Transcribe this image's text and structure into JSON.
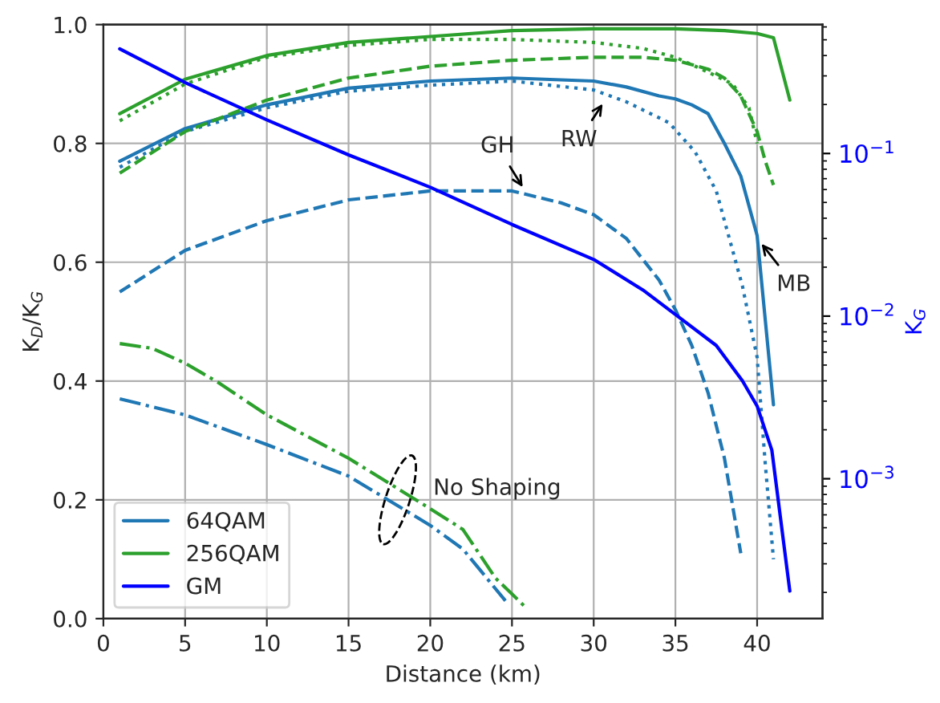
{
  "chart_data": {
    "type": "line",
    "xlabel": "Distance (km)",
    "ylabel": "K$_{D}$/K$_{G}$",
    "y2label": "K$_{G}$",
    "xlim": [
      0,
      44
    ],
    "ylim": [
      0,
      1
    ],
    "xticks": [
      0,
      5,
      10,
      15,
      20,
      25,
      30,
      35,
      40
    ],
    "yticks": [
      {
        "value": 0,
        "label": "0.0"
      },
      {
        "value": 0.2,
        "label": "0.2"
      },
      {
        "value": 0.4,
        "label": "0.4"
      },
      {
        "value": 0.6,
        "label": "0.6"
      },
      {
        "value": 0.8,
        "label": "0.8"
      },
      {
        "value": 1,
        "label": "1.0"
      }
    ],
    "y2lim": [
      0.000138,
      0.62
    ],
    "log": "y2",
    "y2ticks": [
      {
        "value": 0.001,
        "label": "10$^{−3}$"
      },
      {
        "value": 0.01,
        "label": "10$^{−2}$"
      },
      {
        "value": 0.1,
        "label": "10$^{−1}$"
      }
    ],
    "grid": true,
    "legend": "bottom left",
    "series": [
      {
        "name": "64QAM",
        "color": "#1f77b4",
        "line_style": "solid",
        "x": [
          1,
          5,
          10,
          15,
          20,
          25,
          30,
          32,
          34,
          35,
          36,
          37,
          38,
          39,
          40,
          41
        ],
        "values": [
          0.77,
          0.825,
          0.865,
          0.893,
          0.905,
          0.91,
          0.905,
          0.895,
          0.88,
          0.875,
          0.865,
          0.85,
          0.8,
          0.745,
          0.645,
          0.36
        ]
      },
      {
        "color": "#1f77b4",
        "line_style": "dotted",
        "x": [
          1,
          5,
          10,
          15,
          20,
          25,
          30,
          32,
          34.6,
          36.2,
          37.5,
          39.1,
          40,
          40.5,
          41
        ],
        "values": [
          0.76,
          0.82,
          0.86,
          0.888,
          0.898,
          0.905,
          0.89,
          0.87,
          0.835,
          0.786,
          0.72,
          0.56,
          0.44,
          0.26,
          0.1
        ]
      },
      {
        "color": "#1f77b4",
        "line_style": "dashed",
        "x": [
          1,
          5,
          10,
          15,
          20,
          25,
          28,
          30,
          32,
          34,
          35,
          36,
          37,
          38,
          39
        ],
        "values": [
          0.55,
          0.62,
          0.67,
          0.705,
          0.72,
          0.72,
          0.7,
          0.68,
          0.64,
          0.57,
          0.52,
          0.46,
          0.38,
          0.27,
          0.11
        ]
      },
      {
        "color": "#1f77b4",
        "line_style": "dashdot",
        "x": [
          1,
          5,
          10,
          15,
          20,
          22,
          24.6
        ],
        "values": [
          0.37,
          0.343,
          0.293,
          0.24,
          0.157,
          0.117,
          0.03
        ]
      },
      {
        "name": "256QAM",
        "color": "#2ca02c",
        "line_style": "solid",
        "x": [
          1,
          5,
          10,
          15,
          20,
          25,
          30,
          35,
          38,
          40,
          41,
          42
        ],
        "values": [
          0.85,
          0.908,
          0.948,
          0.97,
          0.98,
          0.99,
          0.993,
          0.993,
          0.99,
          0.985,
          0.978,
          0.873
        ]
      },
      {
        "color": "#2ca02c",
        "line_style": "dotted",
        "x": [
          1,
          5,
          10,
          15,
          20,
          25,
          30,
          33,
          35,
          37,
          38.5,
          39.5,
          40
        ],
        "values": [
          0.838,
          0.9,
          0.945,
          0.965,
          0.975,
          0.975,
          0.97,
          0.96,
          0.945,
          0.92,
          0.9,
          0.86,
          0.8
        ]
      },
      {
        "color": "#2ca02c",
        "line_style": "dashed",
        "x": [
          1,
          5,
          10,
          15,
          20,
          25,
          30,
          33,
          35,
          37,
          38,
          39,
          40,
          40.5,
          41
        ],
        "values": [
          0.75,
          0.82,
          0.873,
          0.91,
          0.93,
          0.94,
          0.945,
          0.945,
          0.94,
          0.925,
          0.91,
          0.88,
          0.82,
          0.77,
          0.73
        ]
      },
      {
        "color": "#2ca02c",
        "line_style": "dashdot",
        "x": [
          1,
          3,
          5,
          7,
          10,
          15,
          20,
          22,
          24,
          25.8
        ],
        "values": [
          0.463,
          0.455,
          0.43,
          0.398,
          0.343,
          0.27,
          0.185,
          0.15,
          0.068,
          0.02
        ]
      },
      {
        "name": "GM",
        "color": "#0000ff",
        "line_style": "solid",
        "axis": "y2",
        "x": [
          1,
          5,
          10,
          15,
          20,
          25,
          30,
          33,
          34.9,
          37.5,
          39.1,
          40,
          40.9,
          42
        ],
        "values": [
          0.44,
          0.273,
          0.161,
          0.098,
          0.062,
          0.0366,
          0.0223,
          0.0145,
          0.0104,
          0.0066,
          0.004,
          0.0028,
          0.0015,
          0.000204
        ]
      }
    ],
    "annotations": [
      {
        "text": "GH",
        "x": 25.8,
        "y": 0.72
      },
      {
        "text": "RW",
        "x": 30.7,
        "y": 0.873
      },
      {
        "text": "MB",
        "x": 40.1,
        "y": 0.637
      },
      {
        "text": "No Shaping",
        "x": 18,
        "y": 0.2
      }
    ]
  }
}
